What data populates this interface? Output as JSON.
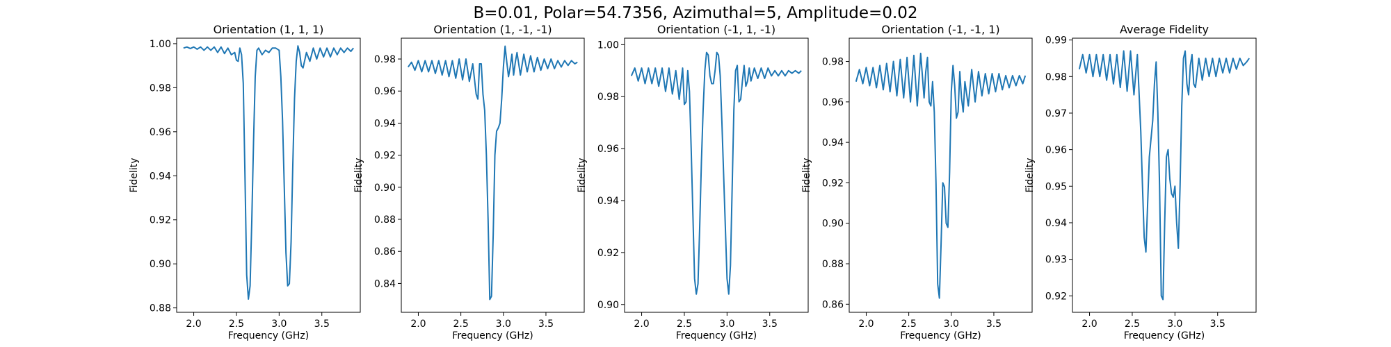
{
  "figure": {
    "suptitle": "B=0.01, Polar=54.7356, Azimuthal=5, Amplitude=0.02"
  },
  "colors": {
    "line": "#1f77b4",
    "axes": "#000000"
  },
  "chart_data": [
    {
      "type": "line",
      "title": "Orientation (1, 1, 1)",
      "xlabel": "Frequency (GHz)",
      "ylabel": "Fidelity",
      "xlim": [
        1.8,
        3.95
      ],
      "ylim": [
        0.878,
        1.0025
      ],
      "xticks": [
        2.0,
        2.5,
        3.0,
        3.5
      ],
      "xtick_labels": [
        "2.0",
        "2.5",
        "3.0",
        "3.5"
      ],
      "yticks": [
        0.88,
        0.9,
        0.92,
        0.94,
        0.96,
        0.98,
        1.0
      ],
      "ytick_labels": [
        "0.88",
        "0.90",
        "0.92",
        "0.94",
        "0.96",
        "0.98",
        "1.00"
      ],
      "grid": false,
      "series": [
        {
          "x": [
            1.88,
            1.92,
            1.96,
            2.0,
            2.04,
            2.08,
            2.12,
            2.16,
            2.2,
            2.24,
            2.28,
            2.32,
            2.36,
            2.4,
            2.44,
            2.48,
            2.5,
            2.52,
            2.54,
            2.56,
            2.58,
            2.6,
            2.62,
            2.64,
            2.66,
            2.68,
            2.7,
            2.72,
            2.74,
            2.76,
            2.8,
            2.84,
            2.88,
            2.92,
            2.96,
            3.0,
            3.02,
            3.04,
            3.06,
            3.08,
            3.1,
            3.12,
            3.14,
            3.16,
            3.18,
            3.2,
            3.22,
            3.24,
            3.26,
            3.28,
            3.32,
            3.36,
            3.4,
            3.44,
            3.48,
            3.52,
            3.56,
            3.6,
            3.64,
            3.68,
            3.72,
            3.76,
            3.8,
            3.84,
            3.87
          ],
          "y": [
            0.998,
            0.9985,
            0.9978,
            0.9985,
            0.9975,
            0.9985,
            0.997,
            0.9985,
            0.997,
            0.9985,
            0.996,
            0.9985,
            0.9955,
            0.998,
            0.995,
            0.996,
            0.9925,
            0.992,
            0.998,
            0.995,
            0.982,
            0.94,
            0.895,
            0.884,
            0.89,
            0.92,
            0.955,
            0.985,
            0.997,
            0.998,
            0.995,
            0.997,
            0.996,
            0.998,
            0.998,
            0.997,
            0.985,
            0.965,
            0.935,
            0.905,
            0.89,
            0.891,
            0.91,
            0.945,
            0.975,
            0.992,
            0.999,
            0.996,
            0.99,
            0.989,
            0.996,
            0.992,
            0.998,
            0.993,
            0.998,
            0.994,
            0.998,
            0.994,
            0.998,
            0.995,
            0.998,
            0.996,
            0.998,
            0.9965,
            0.998
          ]
        }
      ]
    },
    {
      "type": "line",
      "title": "Orientation (1, -1, -1)",
      "xlabel": "Frequency (GHz)",
      "ylabel": "Fidelity",
      "xlim": [
        1.8,
        3.95
      ],
      "ylim": [
        0.822,
        0.993
      ],
      "xticks": [
        2.0,
        2.5,
        3.0,
        3.5
      ],
      "xtick_labels": [
        "2.0",
        "2.5",
        "3.0",
        "3.5"
      ],
      "yticks": [
        0.84,
        0.86,
        0.88,
        0.9,
        0.92,
        0.94,
        0.96,
        0.98
      ],
      "ytick_labels": [
        "0.84",
        "0.86",
        "0.88",
        "0.90",
        "0.92",
        "0.94",
        "0.96",
        "0.98"
      ],
      "grid": false,
      "series": [
        {
          "x": [
            1.88,
            1.92,
            1.96,
            2.0,
            2.04,
            2.08,
            2.12,
            2.16,
            2.2,
            2.24,
            2.28,
            2.32,
            2.36,
            2.4,
            2.44,
            2.48,
            2.52,
            2.56,
            2.6,
            2.64,
            2.68,
            2.7,
            2.72,
            2.74,
            2.76,
            2.78,
            2.8,
            2.82,
            2.84,
            2.86,
            2.88,
            2.9,
            2.92,
            2.94,
            2.96,
            2.98,
            3.0,
            3.02,
            3.04,
            3.06,
            3.08,
            3.1,
            3.12,
            3.14,
            3.16,
            3.2,
            3.24,
            3.28,
            3.32,
            3.36,
            3.4,
            3.44,
            3.48,
            3.52,
            3.56,
            3.6,
            3.64,
            3.68,
            3.72,
            3.76,
            3.8,
            3.84,
            3.87
          ],
          "y": [
            0.975,
            0.978,
            0.973,
            0.979,
            0.972,
            0.979,
            0.972,
            0.979,
            0.971,
            0.979,
            0.97,
            0.979,
            0.969,
            0.979,
            0.968,
            0.98,
            0.967,
            0.98,
            0.966,
            0.977,
            0.958,
            0.955,
            0.977,
            0.977,
            0.958,
            0.948,
            0.92,
            0.88,
            0.83,
            0.832,
            0.87,
            0.92,
            0.935,
            0.937,
            0.94,
            0.955,
            0.975,
            0.988,
            0.978,
            0.969,
            0.975,
            0.983,
            0.97,
            0.978,
            0.984,
            0.97,
            0.983,
            0.972,
            0.982,
            0.972,
            0.981,
            0.973,
            0.98,
            0.974,
            0.98,
            0.974,
            0.979,
            0.975,
            0.979,
            0.976,
            0.979,
            0.977,
            0.978
          ]
        }
      ]
    },
    {
      "type": "line",
      "title": "Orientation (-1, 1, -1)",
      "xlabel": "Frequency (GHz)",
      "ylabel": "Fidelity",
      "xlim": [
        1.8,
        3.95
      ],
      "ylim": [
        0.897,
        1.0025
      ],
      "xticks": [
        2.0,
        2.5,
        3.0,
        3.5
      ],
      "xtick_labels": [
        "2.0",
        "2.5",
        "3.0",
        "3.5"
      ],
      "yticks": [
        0.9,
        0.92,
        0.94,
        0.96,
        0.98,
        1.0
      ],
      "ytick_labels": [
        "0.90",
        "0.92",
        "0.94",
        "0.96",
        "0.98",
        "1.00"
      ],
      "grid": false,
      "series": [
        {
          "x": [
            1.88,
            1.92,
            1.96,
            2.0,
            2.04,
            2.08,
            2.12,
            2.16,
            2.2,
            2.24,
            2.28,
            2.32,
            2.36,
            2.4,
            2.44,
            2.48,
            2.5,
            2.52,
            2.54,
            2.56,
            2.58,
            2.6,
            2.62,
            2.64,
            2.66,
            2.68,
            2.7,
            2.72,
            2.74,
            2.76,
            2.78,
            2.8,
            2.82,
            2.84,
            2.86,
            2.88,
            2.9,
            2.92,
            2.94,
            2.96,
            2.98,
            3.0,
            3.02,
            3.04,
            3.06,
            3.08,
            3.1,
            3.12,
            3.14,
            3.16,
            3.18,
            3.2,
            3.22,
            3.24,
            3.26,
            3.28,
            3.32,
            3.36,
            3.4,
            3.44,
            3.48,
            3.52,
            3.56,
            3.6,
            3.64,
            3.68,
            3.72,
            3.76,
            3.8,
            3.84,
            3.87
          ],
          "y": [
            0.988,
            0.991,
            0.986,
            0.991,
            0.985,
            0.991,
            0.985,
            0.991,
            0.984,
            0.991,
            0.982,
            0.991,
            0.981,
            0.99,
            0.979,
            0.991,
            0.977,
            0.978,
            0.99,
            0.982,
            0.96,
            0.935,
            0.91,
            0.904,
            0.908,
            0.93,
            0.955,
            0.975,
            0.99,
            0.997,
            0.996,
            0.988,
            0.985,
            0.985,
            0.99,
            0.997,
            0.996,
            0.988,
            0.97,
            0.95,
            0.93,
            0.91,
            0.904,
            0.915,
            0.945,
            0.975,
            0.99,
            0.992,
            0.978,
            0.979,
            0.986,
            0.992,
            0.984,
            0.986,
            0.991,
            0.986,
            0.991,
            0.987,
            0.991,
            0.987,
            0.991,
            0.988,
            0.99,
            0.988,
            0.99,
            0.988,
            0.99,
            0.989,
            0.99,
            0.989,
            0.99
          ]
        }
      ]
    },
    {
      "type": "line",
      "title": "Orientation (-1, -1, 1)",
      "xlabel": "Frequency (GHz)",
      "ylabel": "Fidelity",
      "xlim": [
        1.8,
        3.95
      ],
      "ylim": [
        0.856,
        0.9915
      ],
      "xticks": [
        2.0,
        2.5,
        3.0,
        3.5
      ],
      "xtick_labels": [
        "2.0",
        "2.5",
        "3.0",
        "3.5"
      ],
      "yticks": [
        0.86,
        0.88,
        0.9,
        0.92,
        0.94,
        0.96,
        0.98
      ],
      "ytick_labels": [
        "0.86",
        "0.88",
        "0.90",
        "0.92",
        "0.94",
        "0.96",
        "0.98"
      ],
      "grid": false,
      "series": [
        {
          "x": [
            1.88,
            1.92,
            1.96,
            2.0,
            2.04,
            2.08,
            2.12,
            2.16,
            2.2,
            2.24,
            2.28,
            2.32,
            2.36,
            2.4,
            2.44,
            2.48,
            2.52,
            2.56,
            2.6,
            2.64,
            2.68,
            2.7,
            2.72,
            2.74,
            2.76,
            2.78,
            2.8,
            2.82,
            2.84,
            2.86,
            2.88,
            2.9,
            2.92,
            2.94,
            2.96,
            2.98,
            3.0,
            3.02,
            3.04,
            3.06,
            3.08,
            3.1,
            3.12,
            3.14,
            3.16,
            3.2,
            3.24,
            3.28,
            3.32,
            3.36,
            3.4,
            3.44,
            3.48,
            3.52,
            3.56,
            3.6,
            3.64,
            3.68,
            3.72,
            3.76,
            3.8,
            3.84,
            3.87
          ],
          "y": [
            0.97,
            0.976,
            0.969,
            0.977,
            0.968,
            0.977,
            0.967,
            0.978,
            0.966,
            0.979,
            0.965,
            0.98,
            0.963,
            0.981,
            0.962,
            0.982,
            0.96,
            0.983,
            0.958,
            0.984,
            0.962,
            0.975,
            0.982,
            0.96,
            0.958,
            0.97,
            0.955,
            0.92,
            0.87,
            0.863,
            0.89,
            0.92,
            0.918,
            0.9,
            0.898,
            0.925,
            0.965,
            0.978,
            0.968,
            0.952,
            0.955,
            0.975,
            0.962,
            0.955,
            0.97,
            0.958,
            0.976,
            0.96,
            0.975,
            0.963,
            0.974,
            0.964,
            0.974,
            0.965,
            0.974,
            0.966,
            0.973,
            0.967,
            0.973,
            0.968,
            0.973,
            0.969,
            0.973
          ]
        }
      ]
    },
    {
      "type": "line",
      "title": "Average Fidelity",
      "xlabel": "Frequency (GHz)",
      "ylabel": "Fidelity",
      "xlim": [
        1.8,
        3.95
      ],
      "ylim": [
        0.9155,
        0.9905
      ],
      "xticks": [
        2.0,
        2.5,
        3.0,
        3.5
      ],
      "xtick_labels": [
        "2.0",
        "2.5",
        "3.0",
        "3.5"
      ],
      "yticks": [
        0.92,
        0.93,
        0.94,
        0.95,
        0.96,
        0.97,
        0.98,
        0.99
      ],
      "ytick_labels": [
        "0.92",
        "0.93",
        "0.94",
        "0.95",
        "0.96",
        "0.97",
        "0.98",
        "0.99"
      ],
      "grid": false,
      "series": [
        {
          "x": [
            1.88,
            1.92,
            1.96,
            2.0,
            2.04,
            2.08,
            2.12,
            2.16,
            2.2,
            2.24,
            2.28,
            2.32,
            2.36,
            2.4,
            2.44,
            2.48,
            2.52,
            2.56,
            2.6,
            2.62,
            2.64,
            2.66,
            2.68,
            2.7,
            2.72,
            2.74,
            2.76,
            2.78,
            2.8,
            2.82,
            2.84,
            2.86,
            2.88,
            2.9,
            2.92,
            2.94,
            2.96,
            2.98,
            3.0,
            3.02,
            3.04,
            3.06,
            3.08,
            3.1,
            3.12,
            3.14,
            3.16,
            3.18,
            3.2,
            3.22,
            3.24,
            3.28,
            3.32,
            3.36,
            3.4,
            3.44,
            3.48,
            3.52,
            3.56,
            3.6,
            3.64,
            3.68,
            3.72,
            3.76,
            3.8,
            3.84,
            3.87
          ],
          "y": [
            0.982,
            0.986,
            0.981,
            0.986,
            0.98,
            0.986,
            0.98,
            0.986,
            0.979,
            0.986,
            0.978,
            0.986,
            0.977,
            0.987,
            0.976,
            0.987,
            0.975,
            0.986,
            0.965,
            0.95,
            0.936,
            0.932,
            0.945,
            0.958,
            0.963,
            0.968,
            0.978,
            0.984,
            0.97,
            0.95,
            0.92,
            0.919,
            0.94,
            0.958,
            0.96,
            0.952,
            0.948,
            0.947,
            0.95,
            0.94,
            0.933,
            0.95,
            0.972,
            0.985,
            0.987,
            0.978,
            0.975,
            0.983,
            0.986,
            0.978,
            0.977,
            0.985,
            0.979,
            0.985,
            0.98,
            0.985,
            0.98,
            0.985,
            0.981,
            0.985,
            0.981,
            0.985,
            0.982,
            0.985,
            0.983,
            0.984,
            0.985
          ]
        }
      ]
    }
  ]
}
